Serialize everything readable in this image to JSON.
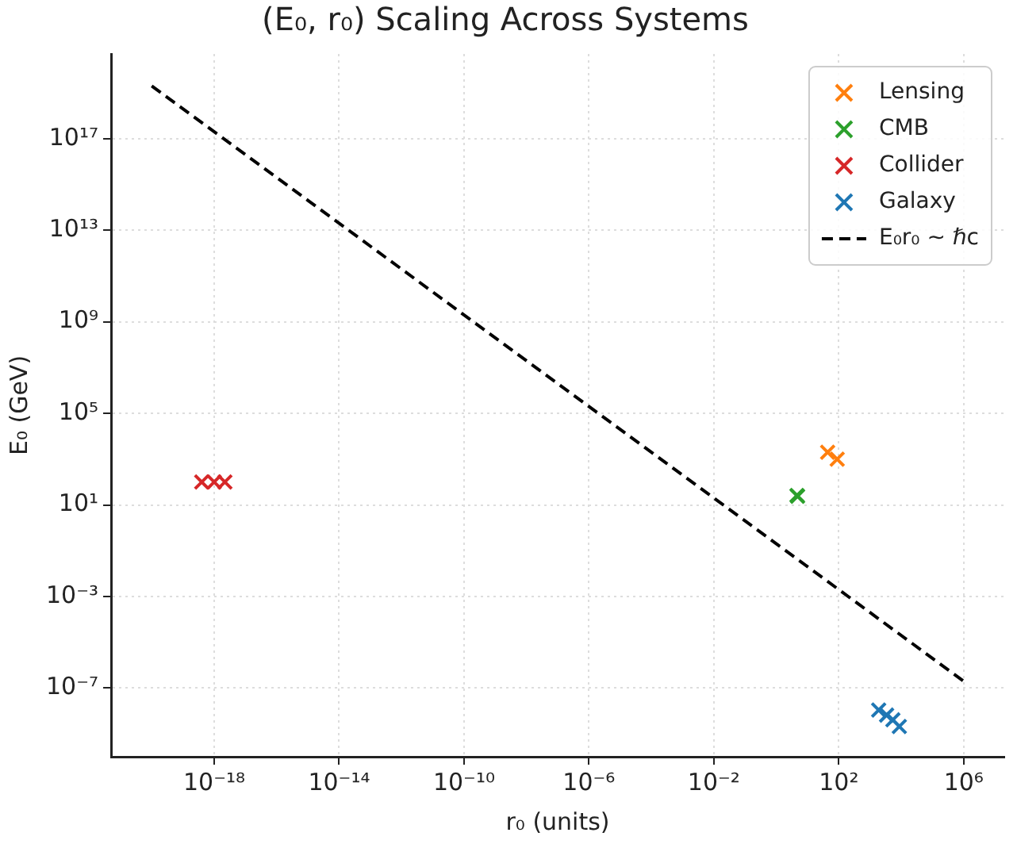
{
  "chart_data": {
    "type": "scatter",
    "title": "(E₀, r₀) Scaling Across Systems",
    "xlabel": "r₀ (units)",
    "ylabel": "E₀ (GeV)",
    "log": "xy",
    "grid": true,
    "legend": "top right",
    "marker": "cross",
    "xlim": [
      5e-22,
      20000000.0
    ],
    "ylim": [
      1e-10,
      5e+20
    ],
    "xticks": [
      {
        "value": 1e-18,
        "label": "10⁻¹⁸"
      },
      {
        "value": 1e-14,
        "label": "10⁻¹⁴"
      },
      {
        "value": 1e-10,
        "label": "10⁻¹⁰"
      },
      {
        "value": 1e-06,
        "label": "10⁻⁶"
      },
      {
        "value": 0.01,
        "label": "10⁻²"
      },
      {
        "value": 100,
        "label": "10²"
      },
      {
        "value": 1000000.0,
        "label": "10⁶"
      }
    ],
    "yticks": [
      {
        "value": 1e-07,
        "label": "10⁻⁷"
      },
      {
        "value": 0.001,
        "label": "10⁻³"
      },
      {
        "value": 10,
        "label": "10¹"
      },
      {
        "value": 100000.0,
        "label": "10⁵"
      },
      {
        "value": 1000000000.0,
        "label": "10⁹"
      },
      {
        "value": 10000000000000.0,
        "label": "10¹³"
      },
      {
        "value": 1e+17,
        "label": "10¹⁷"
      }
    ],
    "series": [
      {
        "name": "Lensing",
        "color": "#ff7f0e",
        "x": [
          44,
          89
        ],
        "values": [
          2000,
          1000
        ]
      },
      {
        "name": "CMB",
        "color": "#2ca02c",
        "x": [
          4.6,
          4.8
        ],
        "values": [
          26,
          24
        ]
      },
      {
        "name": "Collider",
        "color": "#d62728",
        "x": [
          4e-19,
          1e-18,
          2.2e-18
        ],
        "values": [
          100,
          100,
          100
        ]
      },
      {
        "name": "Galaxy",
        "color": "#1f77b4",
        "x": [
          1900,
          3400,
          5400,
          8700
        ],
        "values": [
          1.1e-08,
          6.6e-09,
          4.1e-09,
          2.1e-09
        ]
      },
      {
        "name": "E₀r₀ ∼ ℏc",
        "type": "line",
        "color": "#000000",
        "line_style": "dashed",
        "marker": "none",
        "x": [
          1e-20,
          1000000.0
        ],
        "values": [
          2e+19,
          2e-07
        ]
      }
    ]
  }
}
